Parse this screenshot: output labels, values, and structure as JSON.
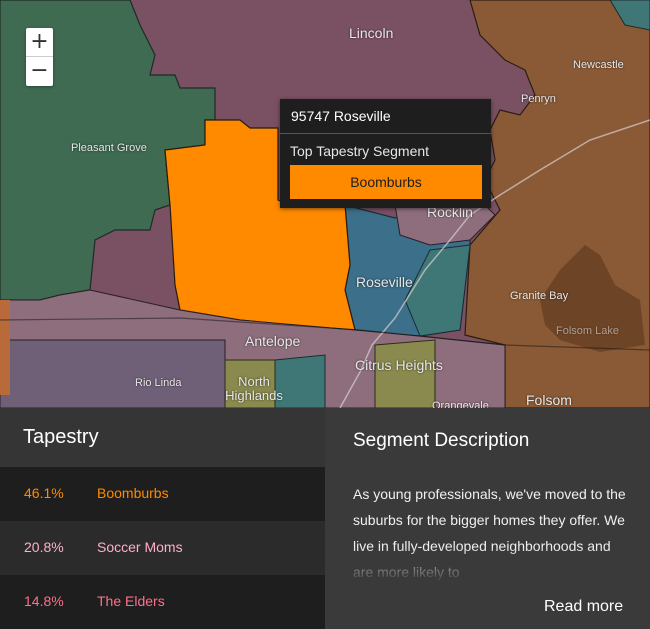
{
  "map": {
    "zoom_in": "+",
    "zoom_out": "−",
    "labels": {
      "lincoln": "Lincoln",
      "newcastle": "Newcastle",
      "penryn": "Penryn",
      "pleasant_grove": "Pleasant Grove",
      "rocklin": "Rocklin",
      "roseville": "Roseville",
      "granite_bay": "Granite Bay",
      "folsom_lake": "Folsom Lake",
      "antelope": "Antelope",
      "rio_linda": "Rio Linda",
      "north_highlands": "North Highlands",
      "citrus_heights": "Citrus Heights",
      "orangevale": "Orangevale",
      "folsom": "Folsom"
    },
    "colors": {
      "green": "#3f6b52",
      "mauve": "#7a5163",
      "orange": "#ff8a00",
      "brown": "#8a5a37",
      "blue": "#3b6f8a",
      "teal": "#3f7777",
      "olive": "#8a8a4f",
      "pink": "#8e6e7c",
      "purple": "#6f6078"
    }
  },
  "popup": {
    "title": "95747 Roseville",
    "subtitle": "Top Tapestry Segment",
    "segment": "Boomburbs"
  },
  "tapestry": {
    "title": "Tapestry",
    "rows": [
      {
        "percent": "46.1%",
        "name": "Boomburbs",
        "color": "#ff8a00"
      },
      {
        "percent": "20.8%",
        "name": "Soccer Moms",
        "color": "#ffb0c8"
      },
      {
        "percent": "14.8%",
        "name": "The Elders",
        "color": "#ff6f8a"
      }
    ]
  },
  "description": {
    "title": "Segment Description",
    "text": "As young professionals, we've moved to the suburbs for the bigger homes they offer. We live in fully-developed neighborhoods and are more likely to",
    "read_more": "Read more"
  }
}
